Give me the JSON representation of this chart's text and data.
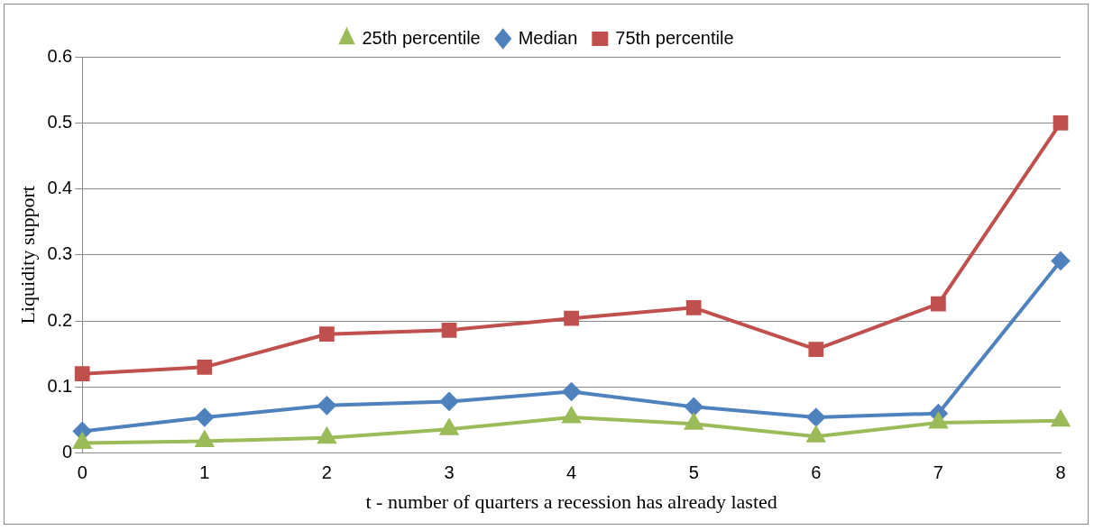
{
  "chart_data": {
    "type": "line",
    "xlabel": "t - number of quarters a recession has already lasted",
    "ylabel": "Liquidity support",
    "categories": [
      "0",
      "1",
      "2",
      "3",
      "4",
      "5",
      "6",
      "7",
      "8"
    ],
    "series": [
      {
        "name": "25th percentile",
        "color": "#9bbb59",
        "marker": "triangle",
        "values": [
          0.015,
          0.018,
          0.023,
          0.036,
          0.054,
          0.044,
          0.025,
          0.046,
          0.049
        ]
      },
      {
        "name": "Median",
        "color": "#4f81bd",
        "marker": "diamond",
        "values": [
          0.033,
          0.054,
          0.072,
          0.078,
          0.093,
          0.07,
          0.054,
          0.06,
          0.291
        ]
      },
      {
        "name": "75th percentile",
        "color": "#c0504d",
        "marker": "square",
        "values": [
          0.12,
          0.13,
          0.18,
          0.186,
          0.204,
          0.22,
          0.157,
          0.226,
          0.5
        ]
      }
    ],
    "ylim": [
      0,
      0.6
    ],
    "yticks": [
      0,
      0.1,
      0.2,
      0.3,
      0.4,
      0.5,
      0.6
    ],
    "grid": "y",
    "legend": "top"
  }
}
